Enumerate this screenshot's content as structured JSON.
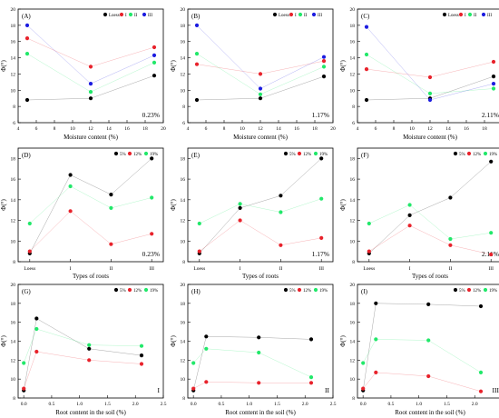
{
  "colors": {
    "Loess": "#000000",
    "I": "#e8222b",
    "II": "#22e86a",
    "III": "#1c1ce0",
    "5%": "#000000",
    "12%": "#e8222b",
    "19%": "#22e86a"
  },
  "chart_data": [
    {
      "id": "A",
      "label": "(A)",
      "type": "line",
      "xlabel": "Moisture content (%)",
      "ylabel": "Φ(°)",
      "xlim": [
        4,
        20
      ],
      "xticks": [
        4,
        6,
        8,
        10,
        12,
        14,
        16,
        18,
        20
      ],
      "ylim": [
        6,
        20
      ],
      "yticks": [
        6,
        8,
        10,
        12,
        14,
        16,
        18,
        20
      ],
      "annotation": "0.23%",
      "legend_position": "top-right",
      "series": [
        {
          "name": "Loess",
          "x": [
            5,
            12,
            19
          ],
          "y": [
            8.8,
            9.0,
            11.8
          ]
        },
        {
          "name": "I",
          "x": [
            5,
            12,
            19
          ],
          "y": [
            16.4,
            12.9,
            15.3
          ]
        },
        {
          "name": "II",
          "x": [
            5,
            12,
            19
          ],
          "y": [
            14.5,
            9.8,
            13.4
          ]
        },
        {
          "name": "III",
          "x": [
            5,
            12,
            19
          ],
          "y": [
            18.0,
            10.8,
            14.3
          ]
        }
      ]
    },
    {
      "id": "B",
      "label": "(B)",
      "type": "line",
      "xlabel": "Moisture content (%)",
      "ylabel": "Φ(°)",
      "xlim": [
        4,
        20
      ],
      "xticks": [
        4,
        6,
        8,
        10,
        12,
        14,
        16,
        18,
        20
      ],
      "ylim": [
        6,
        20
      ],
      "yticks": [
        6,
        8,
        10,
        12,
        14,
        16,
        18,
        20
      ],
      "annotation": "1.17%",
      "legend_position": "top-right",
      "series": [
        {
          "name": "Loess",
          "x": [
            5,
            12,
            19
          ],
          "y": [
            8.8,
            9.0,
            11.7
          ]
        },
        {
          "name": "I",
          "x": [
            5,
            12,
            19
          ],
          "y": [
            13.2,
            12.0,
            13.6
          ]
        },
        {
          "name": "II",
          "x": [
            5,
            12,
            19
          ],
          "y": [
            14.5,
            9.5,
            12.9
          ]
        },
        {
          "name": "III",
          "x": [
            5,
            12,
            19
          ],
          "y": [
            18.0,
            10.2,
            14.1
          ]
        }
      ]
    },
    {
      "id": "C",
      "label": "(C)",
      "type": "line",
      "xlabel": "Moisture content (%)",
      "ylabel": "Φ(°)",
      "xlim": [
        4,
        20
      ],
      "xticks": [
        4,
        6,
        8,
        10,
        12,
        14,
        16,
        18,
        20
      ],
      "ylim": [
        6,
        20
      ],
      "yticks": [
        6,
        8,
        10,
        12,
        14,
        16,
        18,
        20
      ],
      "annotation": "2.11%",
      "legend_position": "top-right",
      "series": [
        {
          "name": "Loess",
          "x": [
            5,
            12,
            19
          ],
          "y": [
            8.8,
            9.0,
            11.7
          ]
        },
        {
          "name": "I",
          "x": [
            5,
            12,
            19
          ],
          "y": [
            12.6,
            11.6,
            13.5
          ]
        },
        {
          "name": "II",
          "x": [
            5,
            12,
            19
          ],
          "y": [
            14.4,
            9.6,
            10.2
          ]
        },
        {
          "name": "III",
          "x": [
            5,
            12,
            19
          ],
          "y": [
            17.8,
            8.8,
            10.8
          ]
        }
      ]
    },
    {
      "id": "D",
      "label": "(D)",
      "type": "line",
      "xlabel": "Types of roots",
      "ylabel": "Φ(°)",
      "categories": [
        "Loess",
        "I",
        "II",
        "III"
      ],
      "ylim": [
        8,
        19
      ],
      "yticks": [
        8,
        10,
        12,
        14,
        16,
        18
      ],
      "annotation": "0.23%",
      "legend_position": "top-right",
      "series": [
        {
          "name": "5%",
          "y": [
            8.8,
            16.4,
            14.5,
            18.0
          ]
        },
        {
          "name": "12%",
          "y": [
            9.0,
            12.9,
            9.7,
            10.7
          ]
        },
        {
          "name": "19%",
          "y": [
            11.7,
            15.3,
            13.2,
            14.2
          ]
        }
      ]
    },
    {
      "id": "E",
      "label": "(E)",
      "type": "line",
      "xlabel": "Types of roots",
      "ylabel": "Φ(°)",
      "categories": [
        "Loess",
        "I",
        "II",
        "III"
      ],
      "ylim": [
        8,
        19
      ],
      "yticks": [
        8,
        10,
        12,
        14,
        16,
        18
      ],
      "annotation": "1.17%",
      "legend_position": "top-right",
      "series": [
        {
          "name": "5%",
          "y": [
            8.8,
            13.2,
            14.4,
            18.0
          ]
        },
        {
          "name": "12%",
          "y": [
            9.0,
            12.0,
            9.6,
            10.3
          ]
        },
        {
          "name": "19%",
          "y": [
            11.7,
            13.6,
            12.8,
            14.1
          ]
        }
      ]
    },
    {
      "id": "F",
      "label": "(F)",
      "type": "line",
      "xlabel": "Types of roots",
      "ylabel": "Φ(°)",
      "categories": [
        "Loess",
        "I",
        "II",
        "III"
      ],
      "ylim": [
        8,
        19
      ],
      "yticks": [
        8,
        10,
        12,
        14,
        16,
        18
      ],
      "annotation": "2.11%",
      "legend_position": "top-right",
      "series": [
        {
          "name": "5%",
          "y": [
            8.8,
            12.5,
            14.2,
            17.7
          ]
        },
        {
          "name": "12%",
          "y": [
            9.0,
            11.5,
            9.6,
            8.7
          ]
        },
        {
          "name": "19%",
          "y": [
            11.7,
            13.5,
            10.2,
            10.8
          ]
        }
      ]
    },
    {
      "id": "G",
      "label": "(G)",
      "type": "line",
      "xlabel": "Root content in the soil (%)",
      "ylabel": "Φ(°)",
      "xlim": [
        -0.1,
        2.5
      ],
      "xticks": [
        0.0,
        0.5,
        1.0,
        1.5,
        2.0,
        2.5
      ],
      "ylim": [
        8,
        20
      ],
      "yticks": [
        8,
        10,
        12,
        14,
        16,
        18,
        20
      ],
      "annotation": "I",
      "legend_position": "top-right",
      "series": [
        {
          "name": "5%",
          "x": [
            0,
            0.23,
            1.17,
            2.11
          ],
          "y": [
            8.8,
            16.4,
            13.2,
            12.5
          ]
        },
        {
          "name": "12%",
          "x": [
            0,
            0.23,
            1.17,
            2.11
          ],
          "y": [
            9.0,
            12.9,
            12.0,
            11.6
          ]
        },
        {
          "name": "19%",
          "x": [
            0,
            0.23,
            1.17,
            2.11
          ],
          "y": [
            11.7,
            15.3,
            13.6,
            13.5
          ]
        }
      ]
    },
    {
      "id": "H",
      "label": "(H)",
      "type": "line",
      "xlabel": "Root content in the soil (%)",
      "ylabel": "Φ(°)",
      "xlim": [
        -0.1,
        2.5
      ],
      "xticks": [
        0.0,
        0.5,
        1.0,
        1.5,
        2.0,
        2.5
      ],
      "ylim": [
        8,
        20
      ],
      "yticks": [
        8,
        10,
        12,
        14,
        16,
        18,
        20
      ],
      "annotation": "II",
      "legend_position": "top-right",
      "series": [
        {
          "name": "5%",
          "x": [
            0,
            0.23,
            1.17,
            2.11
          ],
          "y": [
            8.8,
            14.5,
            14.4,
            14.2
          ]
        },
        {
          "name": "12%",
          "x": [
            0,
            0.23,
            1.17,
            2.11
          ],
          "y": [
            9.0,
            9.7,
            9.6,
            9.6
          ]
        },
        {
          "name": "19%",
          "x": [
            0,
            0.23,
            1.17,
            2.11
          ],
          "y": [
            11.7,
            13.2,
            12.8,
            10.2
          ]
        }
      ]
    },
    {
      "id": "I",
      "label": "(I)",
      "type": "line",
      "xlabel": "Root content in the soil (%)",
      "ylabel": "Φ(°)",
      "xlim": [
        -0.1,
        2.5
      ],
      "xticks": [
        0.0,
        0.5,
        1.0,
        1.5,
        2.0,
        2.5
      ],
      "ylim": [
        8,
        20
      ],
      "yticks": [
        8,
        10,
        12,
        14,
        16,
        18,
        20
      ],
      "annotation": "III",
      "legend_position": "top-right",
      "series": [
        {
          "name": "5%",
          "x": [
            0,
            0.23,
            1.17,
            2.11
          ],
          "y": [
            8.8,
            18.0,
            17.9,
            17.7
          ]
        },
        {
          "name": "12%",
          "x": [
            0,
            0.23,
            1.17,
            2.11
          ],
          "y": [
            9.0,
            10.7,
            10.3,
            8.7
          ]
        },
        {
          "name": "19%",
          "x": [
            0,
            0.23,
            1.17,
            2.11
          ],
          "y": [
            11.7,
            14.2,
            14.1,
            10.7
          ]
        }
      ]
    }
  ]
}
